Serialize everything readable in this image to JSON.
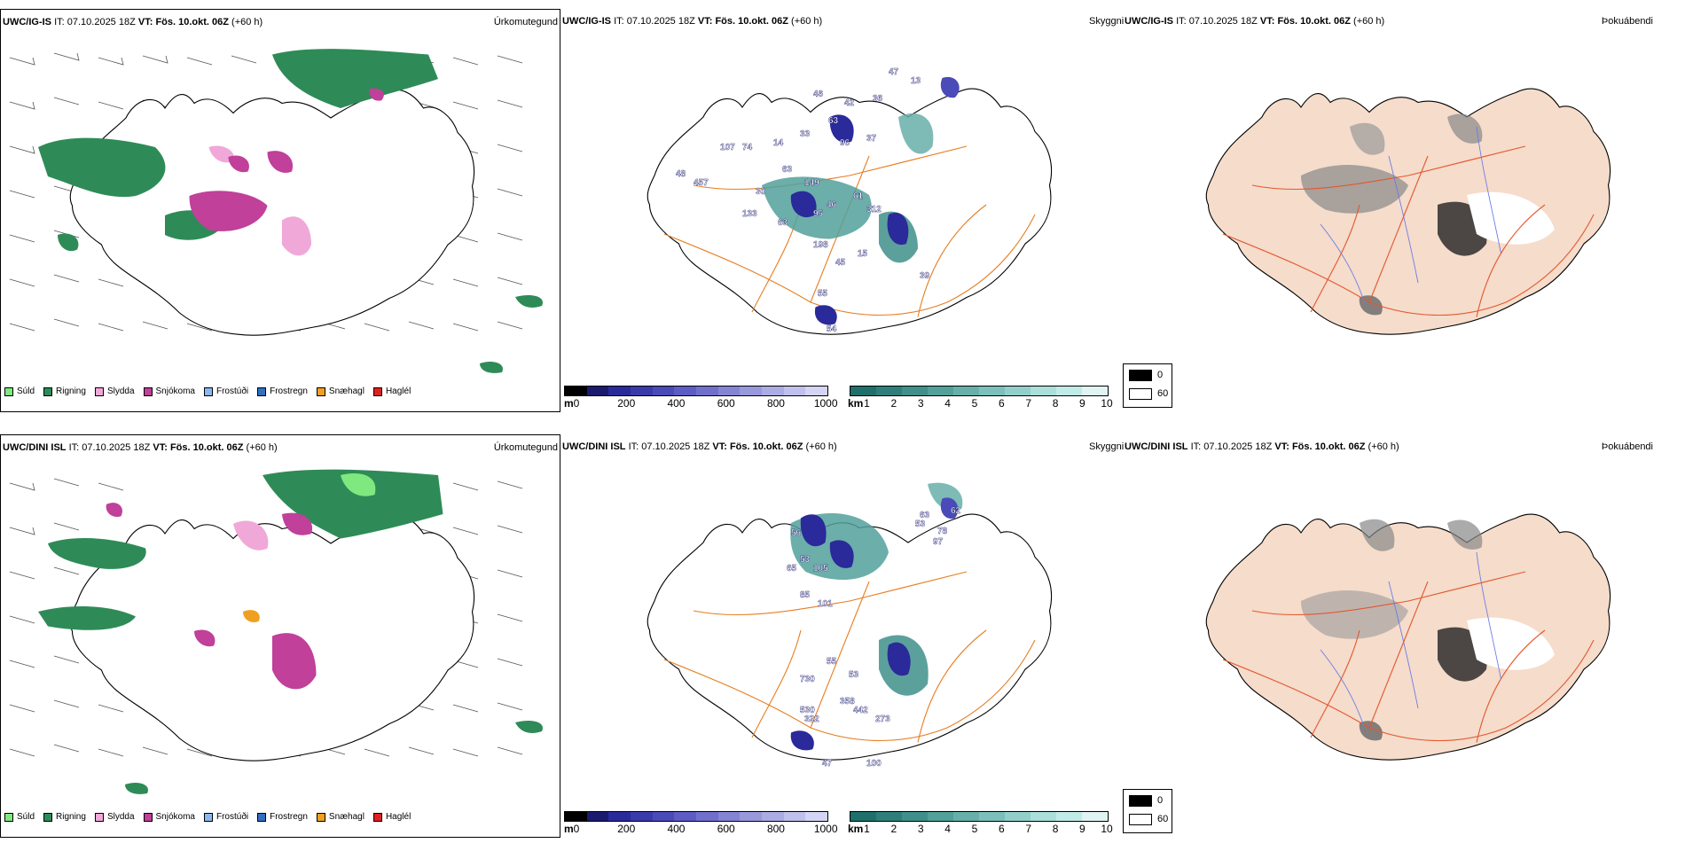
{
  "rows": [
    {
      "model": "UWC/IG-IS",
      "it_label": "IT:",
      "it_value": "07.10.2025 18Z",
      "vt_label": "VT:",
      "vt_value": "Fös. 10.okt. 06Z",
      "lead": "(+60 h)",
      "panel1_title": "Úrkomutegund",
      "panel2_title": "Skyggni",
      "panel3_title": "Þokuábendi",
      "numbers_shown": [
        "47",
        "13",
        "36",
        "46",
        "42",
        "63",
        "33",
        "96",
        "37",
        "107",
        "74",
        "14",
        "48",
        "457",
        "30",
        "63",
        "149",
        "61",
        "133",
        "63",
        "95",
        "46",
        "312",
        "198",
        "15",
        "39",
        "55",
        "54",
        "45"
      ]
    },
    {
      "model": "UWC/DINI ISL",
      "it_label": "IT:",
      "it_value": "07.10.2025 18Z",
      "vt_label": "VT:",
      "vt_value": "Fös. 10.okt. 06Z",
      "lead": "(+60 h)",
      "panel1_title": "Úrkomutegund",
      "panel2_title": "Skyggni",
      "panel3_title": "Þokuábendi",
      "numbers_shown": [
        "63",
        "62",
        "53",
        "78",
        "97",
        "56",
        "53",
        "65",
        "105",
        "85",
        "101",
        "55",
        "730",
        "53",
        "358",
        "442",
        "322",
        "530",
        "273",
        "47",
        "100"
      ]
    }
  ],
  "precip_legend": [
    {
      "label": "Súld",
      "color": "#7fe87f"
    },
    {
      "label": "Rigning",
      "color": "#2e8b57"
    },
    {
      "label": "Slydda",
      "color": "#f0a8d8"
    },
    {
      "label": "Snjókoma",
      "color": "#c0409a"
    },
    {
      "label": "Frostúði",
      "color": "#8ab8f0"
    },
    {
      "label": "Frostregn",
      "color": "#3070c0"
    },
    {
      "label": "Snæhagl",
      "color": "#f0a020"
    },
    {
      "label": "Haglél",
      "color": "#e02020"
    }
  ],
  "ceiling_legend": {
    "unit": "m",
    "ticks": [
      "0",
      "200",
      "400",
      "600",
      "800",
      "1000"
    ],
    "colors": [
      "#000000",
      "#1a1a6e",
      "#2a2a9a",
      "#3a3aaa",
      "#4a4ab8",
      "#5c5cc4",
      "#7070cc",
      "#8484d4",
      "#9898dc",
      "#acacE4",
      "#c0c0ec",
      "#d4d4f4"
    ]
  },
  "visibility_legend": {
    "unit": "km",
    "ticks": [
      "1",
      "2",
      "3",
      "4",
      "5",
      "6",
      "7",
      "8",
      "9",
      "10"
    ],
    "colors": [
      "#1f6f6a",
      "#2e7f7a",
      "#3f8f8a",
      "#52a09a",
      "#67afaa",
      "#7dbfba",
      "#93cfca",
      "#aadfda",
      "#c0ebe7",
      "#e0f5f3"
    ]
  },
  "fog_legend": {
    "entries": [
      {
        "label": "0",
        "color": "#000000"
      },
      {
        "label": "60",
        "color": "#ffffff"
      }
    ]
  }
}
